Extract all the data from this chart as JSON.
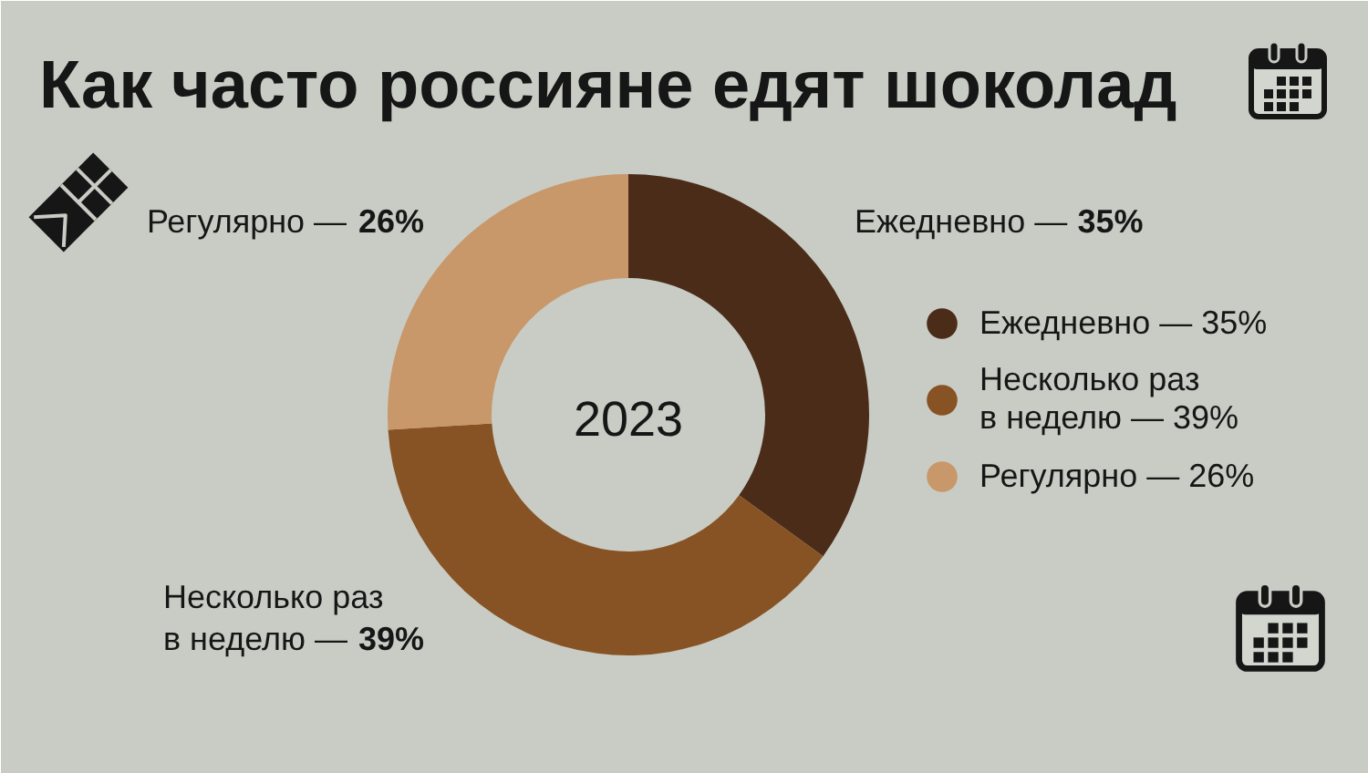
{
  "chart_data": {
    "type": "donut",
    "title": "Как часто россияне едят шоколад",
    "categories": [
      "Ежедневно",
      "Несколько раз в неделю",
      "Регулярно"
    ],
    "values": [
      35,
      39,
      26
    ],
    "colors": [
      "#4a2c18",
      "#875324",
      "#c8976a"
    ],
    "value_labels": [
      "— 35%",
      "— 39%",
      "— 26%"
    ],
    "legend": "right",
    "annotations": [
      "2023"
    ]
  }
}
